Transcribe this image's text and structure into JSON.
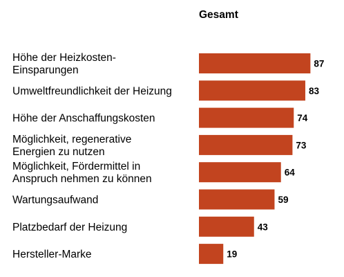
{
  "chart_data": {
    "type": "bar",
    "orientation": "horizontal",
    "title": "Gesamt",
    "categories": [
      [
        "Höhe der Heizkosten-",
        "Einsparungen"
      ],
      [
        "Umweltfreundlichkeit der Heizung"
      ],
      [
        "Höhe der Anschaffungskosten"
      ],
      [
        "Möglichkeit, regenerative",
        "Energien zu nutzen"
      ],
      [
        "Möglichkeit, Fördermittel in",
        "Anspruch nehmen zu können"
      ],
      [
        "Wartungsaufwand"
      ],
      [
        "Platzbedarf der Heizung"
      ],
      [
        "Hersteller-Marke"
      ]
    ],
    "values": [
      87,
      83,
      74,
      73,
      64,
      59,
      43,
      19
    ],
    "bar_color": "#c2441f",
    "xlim": [
      0,
      100
    ],
    "grid": false,
    "legend": false
  }
}
